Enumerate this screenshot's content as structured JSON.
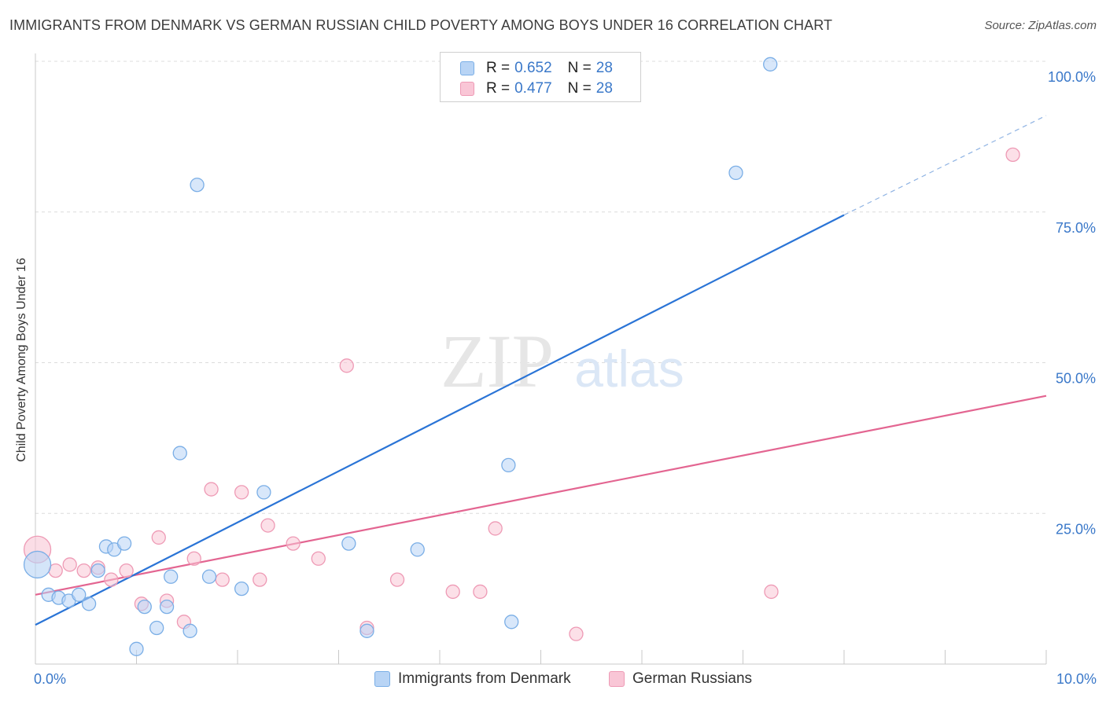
{
  "title": "IMMIGRANTS FROM DENMARK VS GERMAN RUSSIAN CHILD POVERTY AMONG BOYS UNDER 16 CORRELATION CHART",
  "source": "Source: ZipAtlas.com",
  "watermark": {
    "zip": "ZIP",
    "atlas": "atlas"
  },
  "colors": {
    "blue_fill": "#b8d4f5",
    "blue_stroke": "#7aaee6",
    "blue_line": "#2a74d6",
    "pink_fill": "#f9c6d6",
    "pink_stroke": "#ee9ab5",
    "pink_line": "#e36591",
    "tick_label": "#3a78c9",
    "grid": "#dcdcdc"
  },
  "legend": {
    "series": [
      {
        "r_label": "R =",
        "r_value": "0.652",
        "n_label": "N =",
        "n_value": "28"
      },
      {
        "r_label": "R =",
        "r_value": "0.477",
        "n_label": "N =",
        "n_value": "28"
      }
    ]
  },
  "chart_data": {
    "type": "scatter",
    "title": "IMMIGRANTS FROM DENMARK VS GERMAN RUSSIAN CHILD POVERTY AMONG BOYS UNDER 16 CORRELATION CHART",
    "xlabel": "",
    "ylabel": "Child Poverty Among Boys Under 16",
    "xlim": [
      0,
      10
    ],
    "ylim": [
      0,
      100
    ],
    "x_tick_labels": [
      {
        "value": 0,
        "label": "0.0%"
      },
      {
        "value": 10,
        "label": "10.0%"
      }
    ],
    "y_tick_labels": [
      {
        "value": 25,
        "label": "25.0%"
      },
      {
        "value": 50,
        "label": "50.0%"
      },
      {
        "value": 75,
        "label": "75.0%"
      },
      {
        "value": 100,
        "label": "100.0%"
      }
    ],
    "series": [
      {
        "name": "Immigrants from Denmark",
        "color": "blue",
        "points": [
          [
            0.02,
            16.5
          ],
          [
            0.13,
            11.5
          ],
          [
            0.23,
            11.0
          ],
          [
            0.33,
            10.5
          ],
          [
            0.43,
            11.5
          ],
          [
            0.53,
            10.0
          ],
          [
            0.62,
            15.5
          ],
          [
            0.7,
            19.5
          ],
          [
            0.78,
            19.0
          ],
          [
            0.88,
            20.0
          ],
          [
            1.0,
            2.5
          ],
          [
            1.08,
            9.5
          ],
          [
            1.2,
            6.0
          ],
          [
            1.3,
            9.5
          ],
          [
            1.34,
            14.5
          ],
          [
            1.43,
            35.0
          ],
          [
            1.53,
            5.5
          ],
          [
            1.6,
            79.5
          ],
          [
            1.72,
            14.5
          ],
          [
            2.04,
            12.5
          ],
          [
            2.26,
            28.5
          ],
          [
            3.1,
            20.0
          ],
          [
            3.28,
            5.5
          ],
          [
            3.78,
            19.0
          ],
          [
            4.68,
            33.0
          ],
          [
            4.71,
            7.0
          ],
          [
            6.93,
            81.5
          ],
          [
            7.27,
            99.5
          ]
        ],
        "trend": {
          "x": [
            0,
            8.0
          ],
          "y": [
            6.5,
            74.5
          ],
          "dashed_extension": {
            "x": [
              8.0,
              10.0
            ],
            "y": [
              74.5,
              91.0
            ]
          }
        }
      },
      {
        "name": "German Russians",
        "color": "pink",
        "points": [
          [
            0.02,
            19.0
          ],
          [
            0.2,
            15.5
          ],
          [
            0.34,
            16.5
          ],
          [
            0.48,
            15.5
          ],
          [
            0.62,
            16.0
          ],
          [
            0.75,
            14.0
          ],
          [
            0.9,
            15.5
          ],
          [
            1.05,
            10.0
          ],
          [
            1.22,
            21.0
          ],
          [
            1.3,
            10.5
          ],
          [
            1.47,
            7.0
          ],
          [
            1.57,
            17.5
          ],
          [
            1.85,
            14.0
          ],
          [
            1.74,
            29.0
          ],
          [
            2.04,
            28.5
          ],
          [
            2.22,
            14.0
          ],
          [
            2.3,
            23.0
          ],
          [
            2.55,
            20.0
          ],
          [
            2.8,
            17.5
          ],
          [
            3.08,
            49.5
          ],
          [
            3.28,
            6.0
          ],
          [
            3.58,
            14.0
          ],
          [
            4.13,
            12.0
          ],
          [
            4.4,
            12.0
          ],
          [
            4.55,
            22.5
          ],
          [
            5.35,
            5.0
          ],
          [
            7.28,
            12.0
          ],
          [
            9.67,
            84.5
          ]
        ],
        "trend": {
          "x": [
            0,
            10.0
          ],
          "y": [
            11.5,
            44.5
          ]
        }
      }
    ]
  },
  "bottom_legend": {
    "items": [
      {
        "label": "Immigrants from Denmark"
      },
      {
        "label": "German Russians"
      }
    ]
  }
}
